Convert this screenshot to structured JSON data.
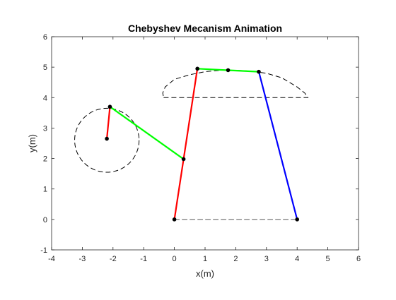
{
  "figure": {
    "background": "#ffffff",
    "axes_color": "#262626"
  },
  "chart_data": {
    "type": "line",
    "title": "Chebyshev Mecanism Animation",
    "xlabel": "x(m)",
    "ylabel": "y(m)",
    "xlim": [
      -4,
      6
    ],
    "ylim": [
      -1,
      6
    ],
    "xticks": [
      -4,
      -3,
      -2,
      -1,
      0,
      1,
      2,
      3,
      4,
      5,
      6
    ],
    "yticks": [
      -1,
      0,
      1,
      2,
      3,
      4,
      5,
      6
    ],
    "grid": false,
    "legend": false,
    "series": [
      {
        "role": "crank",
        "color": "#ff0000",
        "style": "solid",
        "points": [
          [
            -2.2,
            2.65
          ],
          [
            -2.1,
            3.7
          ]
        ]
      },
      {
        "role": "connector",
        "color": "#00ff00",
        "style": "solid",
        "points": [
          [
            -2.1,
            3.7
          ],
          [
            0.3,
            1.98
          ]
        ]
      },
      {
        "role": "rocker-left",
        "color": "#ff0000",
        "style": "solid",
        "points": [
          [
            0.0,
            0.0
          ],
          [
            0.75,
            4.95
          ]
        ]
      },
      {
        "role": "coupler",
        "color": "#00ff00",
        "style": "solid",
        "points": [
          [
            0.75,
            4.95
          ],
          [
            1.75,
            4.9
          ],
          [
            2.75,
            4.85
          ]
        ]
      },
      {
        "role": "rocker-right",
        "color": "#0000ff",
        "style": "solid",
        "points": [
          [
            4.0,
            0.0
          ],
          [
            2.75,
            4.85
          ]
        ]
      },
      {
        "role": "ground",
        "color": "#555555",
        "style": "dashed",
        "points": [
          [
            0.0,
            0.0
          ],
          [
            4.0,
            0.0
          ]
        ]
      }
    ],
    "joints": [
      [
        -2.2,
        2.65
      ],
      [
        -2.1,
        3.7
      ],
      [
        0.3,
        1.98
      ],
      [
        0.0,
        0.0
      ],
      [
        0.75,
        4.95
      ],
      [
        1.75,
        4.9
      ],
      [
        2.75,
        4.85
      ],
      [
        4.0,
        0.0
      ]
    ],
    "crank_circle": {
      "center": [
        -2.2,
        2.6
      ],
      "radius": 1.05,
      "color": "#000000",
      "style": "dashed"
    },
    "coupler_curve": {
      "color": "#000000",
      "style": "dashed",
      "points": [
        [
          -0.35,
          4.0
        ],
        [
          0.0,
          4.0
        ],
        [
          1.0,
          4.0
        ],
        [
          2.0,
          4.0
        ],
        [
          3.0,
          4.0
        ],
        [
          4.0,
          4.0
        ],
        [
          4.35,
          4.0
        ],
        [
          4.25,
          4.15
        ],
        [
          4.0,
          4.35
        ],
        [
          3.5,
          4.65
        ],
        [
          3.0,
          4.8
        ],
        [
          2.5,
          4.87
        ],
        [
          2.0,
          4.9
        ],
        [
          1.5,
          4.9
        ],
        [
          1.0,
          4.85
        ],
        [
          0.5,
          4.75
        ],
        [
          0.0,
          4.6
        ],
        [
          -0.3,
          4.35
        ],
        [
          -0.38,
          4.15
        ],
        [
          -0.35,
          4.0
        ]
      ]
    }
  }
}
